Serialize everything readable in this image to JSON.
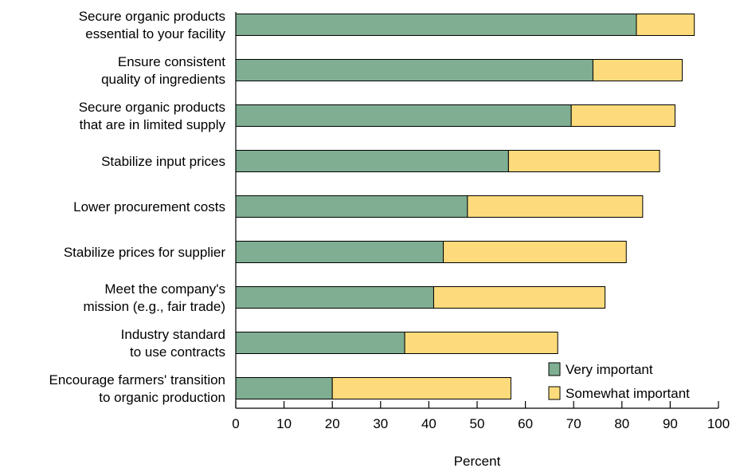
{
  "chart_data": {
    "type": "bar",
    "orientation": "horizontal",
    "stacked": true,
    "categories": [
      [
        "Secure organic products",
        "essential to your facility"
      ],
      [
        "Ensure consistent",
        "quality of ingredients"
      ],
      [
        "Secure organic products",
        "that are in limited supply"
      ],
      [
        "Stabilize input prices"
      ],
      [
        "Lower procurement costs"
      ],
      [
        "Stabilize prices for supplier"
      ],
      [
        "Meet the company's",
        "mission (e.g., fair trade)"
      ],
      [
        "Industry standard",
        "to use contracts"
      ],
      [
        "Encourage farmers' transition",
        "to organic production"
      ]
    ],
    "series": [
      {
        "name": "Very important",
        "color": "#7fae92",
        "values": [
          83,
          74,
          69.5,
          56.5,
          48,
          43,
          41,
          35,
          20
        ]
      },
      {
        "name": "Somewhat important",
        "color": "#fddb7c",
        "values": [
          12,
          18.5,
          21.5,
          31.3,
          36.3,
          37.9,
          35.5,
          31.7,
          37
        ]
      }
    ],
    "xlabel": "Percent",
    "xlim": [
      0,
      100
    ],
    "xticks": [
      0,
      10,
      20,
      30,
      40,
      50,
      60,
      70,
      80,
      90,
      100
    ],
    "legend_position": "bottom-right",
    "grid": false
  }
}
